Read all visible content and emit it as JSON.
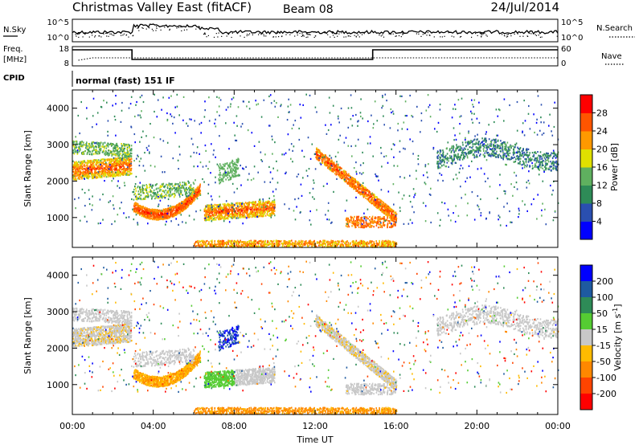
{
  "header": {
    "title": "Christmas Valley East (fitACF)",
    "beam": "Beam 08",
    "date": "24/Jul/2014"
  },
  "strip_labels": {
    "nsky": "N.Sky",
    "nsearch": "N.Search",
    "freq_line1": "Freq.",
    "freq_line2": "[MHz]",
    "nave": "Nave",
    "cpid": "CPID",
    "cpid_value": "normal (fast) 151 IF"
  },
  "strip_ticks": {
    "noise_left": [
      "10^5",
      "10^0"
    ],
    "noise_right": [
      "10^5",
      "10^0"
    ],
    "freq_left": [
      "18",
      "8"
    ],
    "nave_right": [
      "60",
      "0"
    ]
  },
  "colors": {
    "power": [
      "#0000ff",
      "#2a4fb0",
      "#2e8b57",
      "#5fb05f",
      "#e0e000",
      "#ff9900",
      "#ff5500",
      "#ff0000"
    ],
    "velocity": [
      "#0000ff",
      "#1e5aa0",
      "#2e8b57",
      "#55cc33",
      "#c8c8c8",
      "#ffbb00",
      "#ff8800",
      "#ff4400",
      "#ff0000"
    ]
  },
  "chart_data": [
    {
      "type": "heatmap",
      "panel": "power",
      "ylabel": "Slant Range [km]",
      "yticks": [
        "1000",
        "2000",
        "3000",
        "4000"
      ],
      "ylim": [
        180,
        4500
      ],
      "xlim": [
        0,
        24
      ],
      "colorbar": {
        "label": "Power [dB]",
        "ticks": [
          "4",
          "8",
          "12",
          "16",
          "20",
          "24",
          "28"
        ]
      },
      "regions": [
        {
          "t0": 0,
          "t1": 2.8,
          "r0": 1900,
          "r1": 3000,
          "level": "mixed-high"
        },
        {
          "t0": 2.8,
          "t1": 6.3,
          "r0": 900,
          "r1": 1800,
          "level": "high"
        },
        {
          "t0": 6.5,
          "t1": 10,
          "r0": 750,
          "r1": 1550,
          "level": "high"
        },
        {
          "t0": 13,
          "t1": 16,
          "r0": 700,
          "r1": 2600,
          "level": "medium"
        },
        {
          "t0": 18,
          "t1": 24,
          "r0": 2200,
          "r1": 3300,
          "level": "low"
        },
        {
          "t0": 6,
          "t1": 16,
          "r0": 200,
          "r1": 450,
          "level": "medium"
        }
      ]
    },
    {
      "type": "heatmap",
      "panel": "velocity",
      "ylabel": "Slant Range [km]",
      "yticks": [
        "1000",
        "2000",
        "3000",
        "4000"
      ],
      "ylim": [
        180,
        4500
      ],
      "xlim": [
        0,
        24
      ],
      "xticks": [
        "00:00",
        "04:00",
        "08:00",
        "12:00",
        "16:00",
        "20:00",
        "00:00"
      ],
      "xlabel": "Time UT",
      "colorbar": {
        "label": "Velocity [m s^-1]",
        "ticks": [
          "200",
          "100",
          "50",
          "15",
          "-15",
          "-50",
          "-100",
          "-200"
        ]
      }
    }
  ]
}
